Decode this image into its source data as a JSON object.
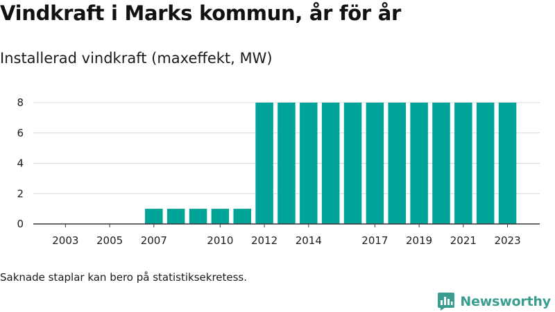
{
  "header": {
    "title": "Vindkraft i Marks kommun, år för år",
    "subtitle": "Installerad vindkraft (maxeffekt, MW)"
  },
  "footnote": "Saknade staplar kan bero på statistiksekretess.",
  "brand": {
    "name": "Newsworthy",
    "icon": "newsworthy-logo-icon",
    "color": "#3a9d8f"
  },
  "chart_data": {
    "type": "bar",
    "title": "Installerad vindkraft (maxeffekt, MW)",
    "xlabel": "",
    "ylabel": "",
    "ylim": [
      0,
      8
    ],
    "yticks": [
      0,
      2,
      4,
      6,
      8
    ],
    "grid": true,
    "legend": "none",
    "bar_color": "#00a398",
    "categories": [
      "2002",
      "2003",
      "2004",
      "2005",
      "2006",
      "2007",
      "2008",
      "2009",
      "2010",
      "2011",
      "2012",
      "2013",
      "2014",
      "2015",
      "2016",
      "2017",
      "2018",
      "2019",
      "2020",
      "2021",
      "2022",
      "2023"
    ],
    "values": [
      0,
      0,
      0,
      0,
      0,
      1,
      1,
      1,
      1,
      1,
      8,
      8,
      8,
      8,
      8,
      8,
      8,
      8,
      8,
      8,
      8,
      8
    ],
    "xtick_labels": [
      "2003",
      "2005",
      "2007",
      "2010",
      "2012",
      "2014",
      "2017",
      "2019",
      "2021",
      "2023"
    ]
  }
}
